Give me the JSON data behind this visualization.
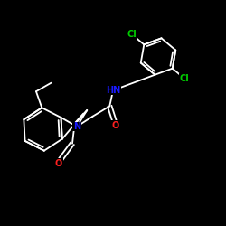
{
  "background_color": "#000000",
  "bond_color": "#ffffff",
  "N_color": "#1a1aff",
  "O_color": "#ff2020",
  "Cl_color": "#00cc00",
  "figsize": [
    2.5,
    2.5
  ],
  "dpi": 100,
  "bond_lw": 1.3,
  "font_size": 7.0,
  "xlim": [
    0,
    10
  ],
  "ylim": [
    0,
    10
  ]
}
